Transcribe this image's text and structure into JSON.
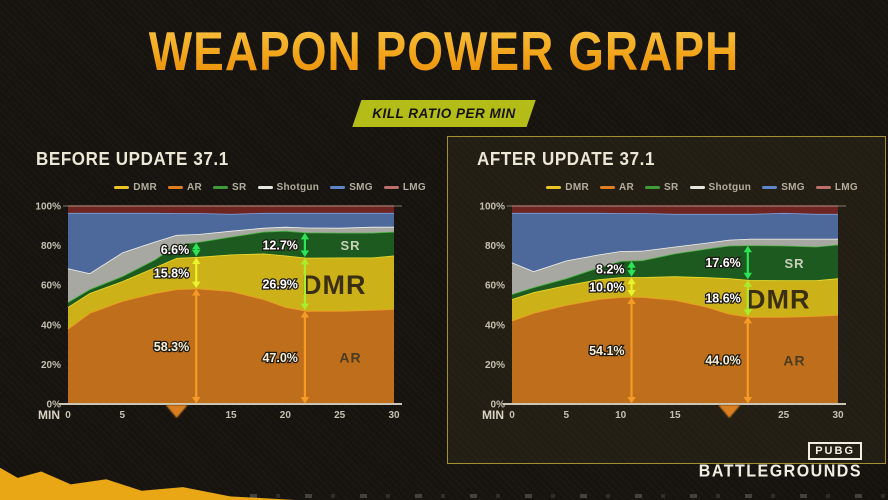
{
  "header": {
    "title": "WEAPON POWER GRAPH",
    "badge": "KILL RATIO PER MIN"
  },
  "legend": {
    "items": [
      {
        "label": "DMR",
        "color": "#e8c623"
      },
      {
        "label": "AR",
        "color": "#e07d20"
      },
      {
        "label": "SR",
        "color": "#3f9a37"
      },
      {
        "label": "Shotgun",
        "color": "#e6e6e0"
      },
      {
        "label": "SMG",
        "color": "#5d85c8"
      },
      {
        "label": "LMG",
        "color": "#bd6f6b"
      }
    ]
  },
  "axes": {
    "y_ticks": [
      "100%",
      "80%",
      "60%",
      "40%",
      "20%",
      "0%"
    ],
    "y_values": [
      100,
      80,
      60,
      40,
      20,
      0
    ],
    "x_ticks": [
      0,
      5,
      10,
      15,
      20,
      25,
      30
    ],
    "x_label": "MIN"
  },
  "footer": {
    "logo_top": "PUBG",
    "logo_bottom": "BATTLEGROUNDS"
  },
  "chart_data": [
    {
      "type": "area",
      "stacked": true,
      "title": "BEFORE UPDATE 37.1",
      "x_unit": "min",
      "ylim": [
        0,
        100
      ],
      "x": [
        0,
        2,
        5,
        8,
        10,
        12,
        15,
        18,
        20,
        22,
        25,
        28,
        30
      ],
      "series": [
        {
          "name": "AR",
          "fill": "#bf6f1b",
          "stroke": "#f09a26",
          "values": [
            38,
            46,
            52,
            56,
            58,
            58.3,
            57,
            53,
            49,
            47,
            47,
            47.5,
            48
          ]
        },
        {
          "name": "DMR",
          "fill": "#cdb119",
          "stroke": "#ecdc2e",
          "values": [
            11,
            10,
            10,
            13,
            15.8,
            16,
            18.5,
            23,
            26,
            26.9,
            27,
            26.5,
            27
          ]
        },
        {
          "name": "SR",
          "fill": "#1d5a20",
          "stroke": "#45b33c",
          "values": [
            2.5,
            2,
            2.5,
            4,
            6.6,
            7.5,
            9,
            11,
            12.5,
            12.7,
            12.5,
            12.5,
            12
          ]
        },
        {
          "name": "Shotgun",
          "fill": "#a8a8a2",
          "stroke": "#f2f2ec",
          "values": [
            17,
            8,
            12,
            9,
            5,
            4,
            3,
            2,
            2,
            2.5,
            2.5,
            3,
            2.5
          ]
        },
        {
          "name": "SMG",
          "fill": "#4d689b",
          "stroke": "#7d9ed9",
          "values": [
            28,
            30.5,
            20,
            14.5,
            11,
            10.6,
            8.5,
            7.5,
            7,
            7.4,
            7.5,
            7,
            7
          ]
        },
        {
          "name": "LMG",
          "fill": "#6e2521",
          "stroke": "#a44a42",
          "values": [
            3.5,
            3.5,
            3.5,
            3.5,
            3.6,
            3.6,
            4,
            3.5,
            3.5,
            3.5,
            3.5,
            3.5,
            3.5
          ]
        }
      ],
      "annotations": [
        {
          "x_min": 11.8,
          "items": [
            {
              "series": "SR",
              "label": "6.6%",
              "arrow_color": "#2ce455",
              "label_color": "#ffffff"
            },
            {
              "series": "DMR",
              "label": "15.8%",
              "arrow_color": "#e9f42c",
              "label_color": "#ffffff"
            },
            {
              "series": "AR",
              "label": "58.3%",
              "arrow_color": "#f79b27",
              "label_color": "#f8edd3"
            }
          ]
        },
        {
          "x_min": 21.8,
          "items": [
            {
              "series": "SR",
              "label": "12.7%",
              "arrow_color": "#2ce455",
              "label_color": "#ffffff"
            },
            {
              "series": "DMR",
              "label": "26.9%",
              "arrow_color": "#a9ee2c",
              "label_color": "#ffffff"
            },
            {
              "series": "AR",
              "label": "47.0%",
              "arrow_color": "#f79b27",
              "label_color": "#f8edd3"
            }
          ]
        }
      ],
      "band_labels": [
        {
          "series": "SR",
          "text": "SR",
          "x_min": 26,
          "font_size": 13,
          "color": "#c9d1ba",
          "weight": 700
        },
        {
          "series": "DMR",
          "text": "DMR",
          "x_min": 24.5,
          "font_size": 27,
          "color": "#3a2f10",
          "weight": 900
        },
        {
          "series": "AR",
          "text": "AR",
          "x_min": 26,
          "font_size": 14,
          "color": "#4a3b22",
          "weight": 700
        }
      ],
      "marker_min": 10,
      "hidden_x_tick": 10
    },
    {
      "type": "area",
      "stacked": true,
      "title": "AFTER UPDATE 37.1",
      "x_unit": "min",
      "ylim": [
        0,
        100
      ],
      "x": [
        0,
        2,
        5,
        8,
        10,
        12,
        15,
        18,
        20,
        22,
        25,
        28,
        30
      ],
      "series": [
        {
          "name": "AR",
          "fill": "#bf6f1b",
          "stroke": "#f09a26",
          "values": [
            42,
            46,
            50,
            53,
            54,
            54.1,
            52.5,
            49,
            45.5,
            44,
            44,
            44.5,
            45
          ]
        },
        {
          "name": "DMR",
          "fill": "#cdb119",
          "stroke": "#ecdc2e",
          "values": [
            11,
            10.5,
            10,
            10,
            10,
            10,
            12,
            15,
            18,
            18.6,
            18.5,
            18,
            18.5
          ]
        },
        {
          "name": "SR",
          "fill": "#1d5a20",
          "stroke": "#45b33c",
          "values": [
            2.5,
            2.5,
            3.5,
            6,
            8.2,
            8.5,
            11.5,
            14.5,
            16.5,
            17.6,
            17.5,
            17,
            17
          ]
        },
        {
          "name": "Shotgun",
          "fill": "#a8a8a2",
          "stroke": "#f2f2ec",
          "values": [
            16,
            8,
            9,
            6.5,
            5,
            4.8,
            3.5,
            3,
            3,
            3.3,
            3.5,
            4,
            3
          ]
        },
        {
          "name": "SMG",
          "fill": "#4d689b",
          "stroke": "#7d9ed9",
          "values": [
            25,
            29.5,
            24,
            21,
            19.2,
            19,
            16.5,
            14.5,
            13,
            12.5,
            13,
            12.5,
            12.5
          ]
        },
        {
          "name": "LMG",
          "fill": "#6e2521",
          "stroke": "#a44a42",
          "values": [
            3.5,
            3.5,
            3.5,
            3.5,
            3.6,
            3.6,
            4,
            4,
            4,
            4,
            3.5,
            4,
            4
          ]
        }
      ],
      "annotations": [
        {
          "x_min": 11,
          "items": [
            {
              "series": "SR",
              "label": "8.2%",
              "arrow_color": "#2ce455",
              "label_color": "#ffffff"
            },
            {
              "series": "DMR",
              "label": "10.0%",
              "arrow_color": "#e9f42c",
              "label_color": "#ffffff"
            },
            {
              "series": "AR",
              "label": "54.1%",
              "arrow_color": "#f79b27",
              "label_color": "#f8edd3"
            }
          ]
        },
        {
          "x_min": 21.7,
          "items": [
            {
              "series": "SR",
              "label": "17.6%",
              "arrow_color": "#2ce455",
              "label_color": "#ffffff"
            },
            {
              "series": "DMR",
              "label": "18.6%",
              "arrow_color": "#a9ee2c",
              "label_color": "#ffffff"
            },
            {
              "series": "AR",
              "label": "44.0%",
              "arrow_color": "#f79b27",
              "label_color": "#f8edd3"
            }
          ]
        }
      ],
      "band_labels": [
        {
          "series": "SR",
          "text": "SR",
          "x_min": 26,
          "font_size": 13,
          "color": "#c9d1ba",
          "weight": 700
        },
        {
          "series": "DMR",
          "text": "DMR",
          "x_min": 24.5,
          "font_size": 27,
          "color": "#3a2f10",
          "weight": 900
        },
        {
          "series": "AR",
          "text": "AR",
          "x_min": 26,
          "font_size": 14,
          "color": "#4a3b22",
          "weight": 700
        }
      ],
      "marker_min": 20,
      "hidden_x_tick": 20
    }
  ]
}
